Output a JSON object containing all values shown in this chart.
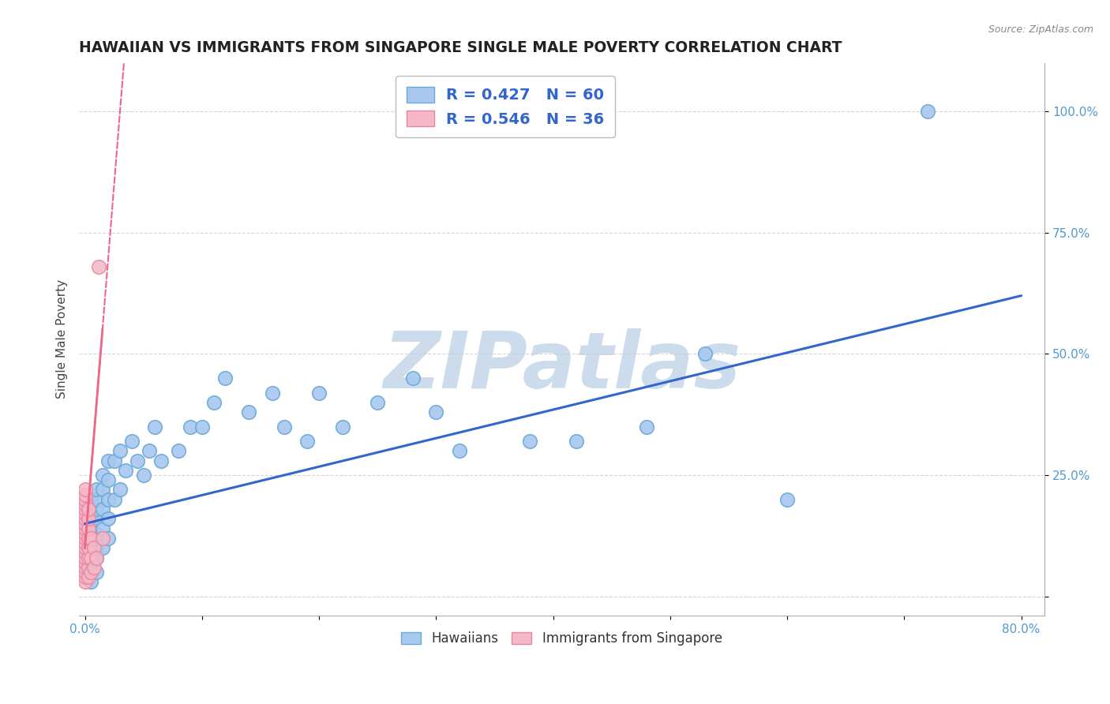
{
  "title": "HAWAIIAN VS IMMIGRANTS FROM SINGAPORE SINGLE MALE POVERTY CORRELATION CHART",
  "source": "Source: ZipAtlas.com",
  "ylabel": "Single Male Poverty",
  "xlim": [
    -0.005,
    0.82
  ],
  "ylim": [
    -0.04,
    1.1
  ],
  "xticks": [
    0.0,
    0.1,
    0.2,
    0.3,
    0.4,
    0.5,
    0.6,
    0.7,
    0.8
  ],
  "xticklabels": [
    "0.0%",
    "",
    "",
    "",
    "",
    "",
    "",
    "",
    "80.0%"
  ],
  "ytick_positions": [
    0.0,
    0.25,
    0.5,
    0.75,
    1.0
  ],
  "yticklabels": [
    "",
    "25.0%",
    "50.0%",
    "75.0%",
    "100.0%"
  ],
  "legend_r1": "R = 0.427",
  "legend_n1": "N = 60",
  "legend_r2": "R = 0.546",
  "legend_n2": "N = 36",
  "blue_color": "#a8c8f0",
  "blue_edge": "#6aaad4",
  "pink_color": "#f4b8c8",
  "pink_edge": "#e888a0",
  "trend_blue": "#3366cc",
  "trend_pink": "#ee6688",
  "watermark": "ZIPatlas",
  "watermark_color": "#ccdcec",
  "title_color": "#222222",
  "axis_label_color": "#444444",
  "tick_color": "#5599cc",
  "grid_color": "#cccccc",
  "hawaiians_x": [
    0.005,
    0.005,
    0.005,
    0.005,
    0.005,
    0.005,
    0.005,
    0.005,
    0.005,
    0.005,
    0.01,
    0.01,
    0.01,
    0.01,
    0.01,
    0.01,
    0.01,
    0.01,
    0.015,
    0.015,
    0.015,
    0.015,
    0.015,
    0.02,
    0.02,
    0.02,
    0.02,
    0.02,
    0.025,
    0.025,
    0.03,
    0.03,
    0.035,
    0.04,
    0.045,
    0.05,
    0.055,
    0.06,
    0.065,
    0.08,
    0.09,
    0.1,
    0.11,
    0.12,
    0.14,
    0.16,
    0.17,
    0.19,
    0.2,
    0.22,
    0.25,
    0.28,
    0.3,
    0.32,
    0.38,
    0.42,
    0.48,
    0.53,
    0.6,
    0.72
  ],
  "hawaiians_y": [
    0.03,
    0.05,
    0.07,
    0.08,
    0.1,
    0.12,
    0.14,
    0.16,
    0.18,
    0.2,
    0.05,
    0.08,
    0.1,
    0.13,
    0.16,
    0.18,
    0.2,
    0.22,
    0.1,
    0.14,
    0.18,
    0.22,
    0.25,
    0.12,
    0.16,
    0.2,
    0.24,
    0.28,
    0.2,
    0.28,
    0.22,
    0.3,
    0.26,
    0.32,
    0.28,
    0.25,
    0.3,
    0.35,
    0.28,
    0.3,
    0.35,
    0.35,
    0.4,
    0.45,
    0.38,
    0.42,
    0.35,
    0.32,
    0.42,
    0.35,
    0.4,
    0.45,
    0.38,
    0.3,
    0.32,
    0.32,
    0.35,
    0.5,
    0.2,
    1.0
  ],
  "singapore_x": [
    0.0,
    0.0,
    0.0,
    0.0,
    0.0,
    0.0,
    0.0,
    0.0,
    0.0,
    0.0,
    0.0,
    0.0,
    0.0,
    0.0,
    0.0,
    0.0,
    0.0,
    0.0,
    0.0,
    0.0,
    0.003,
    0.003,
    0.003,
    0.003,
    0.003,
    0.003,
    0.003,
    0.003,
    0.005,
    0.005,
    0.005,
    0.008,
    0.008,
    0.01,
    0.012,
    0.015
  ],
  "singapore_y": [
    0.03,
    0.04,
    0.05,
    0.06,
    0.07,
    0.08,
    0.09,
    0.1,
    0.11,
    0.12,
    0.13,
    0.14,
    0.15,
    0.16,
    0.17,
    0.18,
    0.19,
    0.2,
    0.21,
    0.22,
    0.04,
    0.06,
    0.08,
    0.1,
    0.12,
    0.14,
    0.16,
    0.18,
    0.05,
    0.08,
    0.12,
    0.06,
    0.1,
    0.08,
    0.68,
    0.12
  ],
  "blue_trend_x0": 0.0,
  "blue_trend_y0": 0.15,
  "blue_trend_x1": 0.8,
  "blue_trend_y1": 0.62,
  "pink_trend_x0": 0.0,
  "pink_trend_y0": 0.1,
  "pink_trend_x1": 0.015,
  "pink_trend_y1": 0.55
}
